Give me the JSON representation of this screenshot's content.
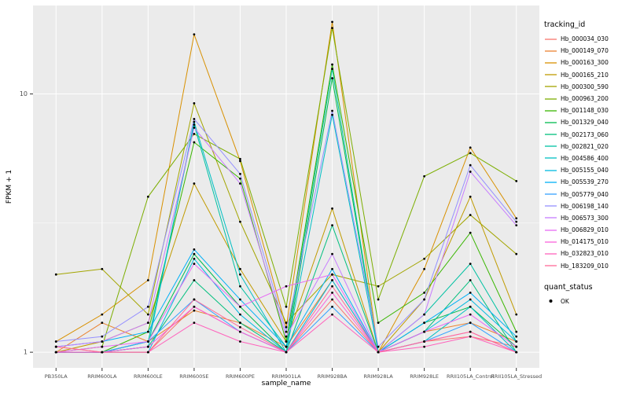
{
  "chart_data": {
    "type": "line",
    "title": "",
    "xlabel": "sample_name",
    "ylabel": "FPKM + 1",
    "y_scale": "log10",
    "y_ticks": [
      1,
      10
    ],
    "y_minor_ticks": [
      3.162
    ],
    "ylim": [
      0.87,
      22
    ],
    "grid": true,
    "legend_position": "right",
    "categories": [
      "PB350LA",
      "RRIM600LA",
      "RRIM600LE",
      "RRIM600SE",
      "RRIM600PE",
      "RRIM901LA",
      "RRIM928BA",
      "RRIM928LA",
      "RRIM928LE",
      "RRII105LA_Control",
      "RRII105LA_Stressed"
    ],
    "series": [
      {
        "name": "Hb_000034_030",
        "color": "#F8766D",
        "values": [
          1.05,
          1.0,
          1.0,
          1.5,
          1.2,
          1.0,
          1.6,
          1.0,
          1.1,
          1.15,
          1.05
        ]
      },
      {
        "name": "Hb_000149_070",
        "color": "#EA8331",
        "values": [
          1.0,
          1.3,
          1.1,
          1.45,
          1.3,
          1.05,
          1.9,
          1.0,
          1.2,
          1.3,
          1.1
        ]
      },
      {
        "name": "Hb_000163_300",
        "color": "#D89000",
        "values": [
          1.1,
          1.4,
          1.9,
          17.0,
          5.5,
          1.25,
          19.0,
          1.0,
          2.1,
          6.2,
          3.3
        ]
      },
      {
        "name": "Hb_000165_210",
        "color": "#C09B00",
        "values": [
          1.0,
          1.1,
          1.3,
          4.5,
          2.1,
          1.1,
          3.6,
          1.0,
          1.6,
          4.0,
          1.4
        ]
      },
      {
        "name": "Hb_000300_590",
        "color": "#A3A500",
        "values": [
          2.0,
          2.1,
          1.4,
          9.2,
          3.2,
          1.3,
          2.0,
          1.8,
          2.3,
          3.4,
          2.4
        ]
      },
      {
        "name": "Hb_000963_200",
        "color": "#7CAE00",
        "values": [
          1.0,
          1.05,
          4.0,
          7.0,
          5.6,
          1.5,
          18.0,
          1.6,
          4.8,
          5.9,
          4.6
        ]
      },
      {
        "name": "Hb_001148_030",
        "color": "#39B600",
        "values": [
          1.0,
          1.0,
          1.2,
          6.5,
          4.7,
          1.1,
          13.0,
          1.3,
          1.7,
          2.9,
          1.2
        ]
      },
      {
        "name": "Hb_001329_040",
        "color": "#00BB4E",
        "values": [
          1.0,
          1.0,
          1.1,
          2.4,
          1.5,
          1.0,
          11.5,
          1.0,
          1.3,
          1.5,
          1.05
        ]
      },
      {
        "name": "Hb_002173_060",
        "color": "#00BF7D",
        "values": [
          1.0,
          1.0,
          1.05,
          1.9,
          1.3,
          1.0,
          3.1,
          1.0,
          1.2,
          1.9,
          1.0
        ]
      },
      {
        "name": "Hb_002821_020",
        "color": "#00C1A3",
        "values": [
          1.0,
          1.0,
          1.1,
          7.6,
          1.8,
          1.05,
          12.5,
          1.0,
          1.4,
          2.2,
          1.1
        ]
      },
      {
        "name": "Hb_004586_400",
        "color": "#00BFC4",
        "values": [
          1.0,
          1.0,
          1.05,
          7.8,
          2.0,
          1.0,
          8.3,
          1.0,
          1.1,
          1.5,
          1.0
        ]
      },
      {
        "name": "Hb_005155_040",
        "color": "#00BAE0",
        "values": [
          1.0,
          1.0,
          1.0,
          2.3,
          1.4,
          1.0,
          1.9,
          1.0,
          1.2,
          1.6,
          1.1
        ]
      },
      {
        "name": "Hb_005539_270",
        "color": "#00B0F6",
        "values": [
          1.05,
          1.1,
          1.2,
          2.5,
          1.6,
          1.05,
          2.1,
          1.0,
          1.3,
          1.7,
          1.15
        ]
      },
      {
        "name": "Hb_005779_040",
        "color": "#35A2FF",
        "values": [
          1.0,
          1.0,
          1.1,
          1.6,
          1.2,
          1.0,
          1.5,
          1.0,
          1.1,
          1.3,
          1.0
        ]
      },
      {
        "name": "Hb_006198_140",
        "color": "#9590FF",
        "values": [
          1.1,
          1.15,
          1.5,
          8.0,
          4.9,
          1.2,
          8.6,
          1.05,
          1.6,
          5.3,
          3.2
        ]
      },
      {
        "name": "Hb_006573_300",
        "color": "#C77CFF",
        "values": [
          1.05,
          1.1,
          1.3,
          7.4,
          4.5,
          1.15,
          2.4,
          1.0,
          1.4,
          5.0,
          3.1
        ]
      },
      {
        "name": "Hb_006829_010",
        "color": "#E76BF3",
        "values": [
          1.0,
          1.05,
          1.1,
          2.2,
          1.5,
          1.8,
          2.0,
          1.0,
          1.2,
          1.4,
          1.05
        ]
      },
      {
        "name": "Hb_014175_010",
        "color": "#FA62DB",
        "values": [
          1.0,
          1.0,
          1.05,
          1.5,
          1.2,
          1.0,
          1.7,
          1.0,
          1.1,
          1.2,
          1.0
        ]
      },
      {
        "name": "Hb_032823_010",
        "color": "#FF62BC",
        "values": [
          1.0,
          1.0,
          1.0,
          1.3,
          1.1,
          1.0,
          1.4,
          1.0,
          1.05,
          1.15,
          1.0
        ]
      },
      {
        "name": "Hb_183209_010",
        "color": "#FF6A98",
        "values": [
          1.05,
          1.0,
          1.0,
          1.6,
          1.25,
          1.0,
          1.8,
          1.0,
          1.1,
          1.2,
          1.0
        ]
      }
    ],
    "legend": {
      "color_title": "tracking_id",
      "shape_title": "quant_status",
      "shape_items": [
        {
          "label": "OK",
          "color": "#000000"
        }
      ]
    }
  },
  "style": {
    "panel_bg": "#EBEBEB",
    "grid_color": "#FFFFFF",
    "tick_text": "#4D4D4D",
    "title_text": "#000000",
    "point_color": "#000000"
  }
}
